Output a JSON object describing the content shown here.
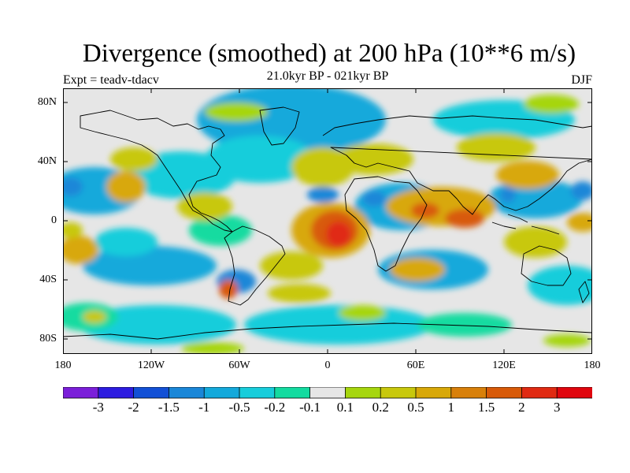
{
  "title": "Divergence (smoothed) at 200 hPa (10**6 m/s)",
  "subtitle": "21.0kyr BP - 021kyr BP",
  "experiment": "Expt = teadv-tdacv",
  "season": "DJF",
  "lat_labels": [
    "80N",
    "40N",
    "0",
    "40S",
    "80S"
  ],
  "lon_labels": [
    "180",
    "120W",
    "60W",
    "0",
    "60E",
    "120E",
    "180"
  ],
  "colorbar": {
    "colors": [
      "#7b1fd9",
      "#2d1ce0",
      "#1250d6",
      "#1a87d8",
      "#13a9db",
      "#17cddb",
      "#13dba0",
      "#e6e6e6",
      "#a6d60e",
      "#c8c80c",
      "#d8a808",
      "#d8800a",
      "#d85a08",
      "#e02a12",
      "#e0060e"
    ],
    "labels": [
      "-3",
      "-2",
      "-1.5",
      "-1",
      "-0.5",
      "-0.2",
      "-0.1",
      "0.1",
      "0.2",
      "0.5",
      "1",
      "1.5",
      "2",
      "3"
    ]
  },
  "map_colors": {
    "ocean_bg": "#e6e6e6",
    "coast": "#000000"
  }
}
